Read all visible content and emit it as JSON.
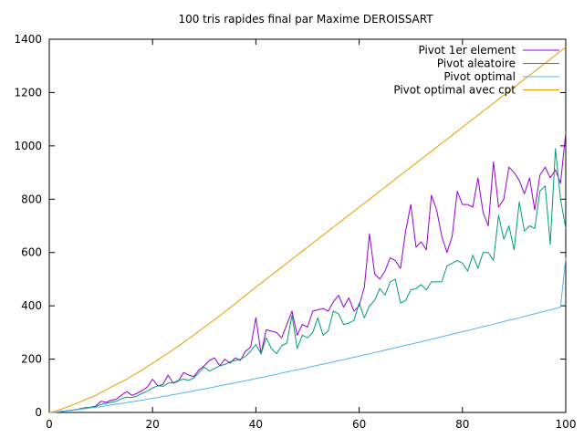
{
  "chart_data": {
    "type": "line",
    "title": "100 tris rapides final par Maxime DEROISSART",
    "xlabel": "",
    "ylabel": "",
    "xlim": [
      0,
      100
    ],
    "ylim": [
      0,
      1400
    ],
    "xticks": [
      0,
      20,
      40,
      60,
      80,
      100
    ],
    "yticks": [
      0,
      200,
      400,
      600,
      800,
      1000,
      1200,
      1400
    ],
    "grid": false,
    "legend_position": "top-right",
    "x": [
      0,
      1,
      2,
      3,
      4,
      5,
      6,
      7,
      8,
      9,
      10,
      11,
      12,
      13,
      14,
      15,
      16,
      17,
      18,
      19,
      20,
      21,
      22,
      23,
      24,
      25,
      26,
      27,
      28,
      29,
      30,
      31,
      32,
      33,
      34,
      35,
      36,
      37,
      38,
      39,
      40,
      41,
      42,
      43,
      44,
      45,
      46,
      47,
      48,
      49,
      50,
      51,
      52,
      53,
      54,
      55,
      56,
      57,
      58,
      59,
      60,
      61,
      62,
      63,
      64,
      65,
      66,
      67,
      68,
      69,
      70,
      71,
      72,
      73,
      74,
      75,
      76,
      77,
      78,
      79,
      80,
      81,
      82,
      83,
      84,
      85,
      86,
      87,
      88,
      89,
      90,
      91,
      92,
      93,
      94,
      95,
      96,
      97,
      98,
      99,
      100
    ],
    "series": [
      {
        "name": "Pivot 1er element",
        "color": "#9400d3",
        "values": [
          0,
          1,
          3,
          5,
          8,
          10,
          14,
          18,
          20,
          24,
          42,
          38,
          46,
          50,
          65,
          78,
          64,
          72,
          82,
          95,
          125,
          100,
          105,
          140,
          110,
          118,
          150,
          140,
          135,
          160,
          175,
          195,
          205,
          175,
          200,
          185,
          205,
          195,
          230,
          245,
          355,
          220,
          310,
          305,
          300,
          280,
          330,
          380,
          290,
          330,
          320,
          380,
          385,
          390,
          380,
          415,
          440,
          395,
          430,
          380,
          400,
          470,
          670,
          520,
          500,
          530,
          580,
          570,
          540,
          680,
          780,
          620,
          640,
          610,
          815,
          760,
          660,
          600,
          660,
          830,
          780,
          780,
          770,
          880,
          750,
          700,
          940,
          770,
          800,
          920,
          900,
          870,
          820,
          880,
          760,
          890,
          920,
          880,
          910,
          860,
          1050
        ]
      },
      {
        "name": "Pivot aleatoire",
        "color": "#009e73",
        "values": [
          0,
          1,
          3,
          5,
          8,
          10,
          14,
          17,
          20,
          22,
          30,
          34,
          38,
          42,
          52,
          58,
          56,
          62,
          72,
          80,
          92,
          100,
          98,
          110,
          112,
          120,
          125,
          120,
          130,
          150,
          170,
          155,
          165,
          175,
          180,
          190,
          195,
          200,
          210,
          230,
          255,
          220,
          280,
          240,
          220,
          250,
          260,
          365,
          240,
          290,
          280,
          300,
          355,
          290,
          305,
          380,
          370,
          330,
          335,
          345,
          410,
          355,
          400,
          420,
          465,
          440,
          490,
          500,
          410,
          420,
          460,
          465,
          480,
          460,
          490,
          490,
          490,
          550,
          560,
          570,
          560,
          530,
          590,
          540,
          600,
          600,
          570,
          740,
          650,
          700,
          610,
          790,
          680,
          700,
          690,
          830,
          850,
          630,
          990,
          800,
          690
        ]
      },
      {
        "name": "Pivot optimal",
        "color": "#56b4e9",
        "values": [
          0,
          1,
          3,
          5,
          7,
          9,
          12,
          14,
          17,
          19,
          22,
          25,
          28,
          31,
          34,
          37,
          40,
          43,
          46,
          50,
          53,
          56,
          60,
          63,
          67,
          70,
          74,
          77,
          81,
          85,
          88,
          92,
          96,
          100,
          104,
          107,
          111,
          115,
          119,
          123,
          127,
          131,
          135,
          139,
          143,
          148,
          152,
          156,
          160,
          164,
          168,
          173,
          177,
          181,
          185,
          190,
          194,
          198,
          203,
          207,
          211,
          216,
          220,
          225,
          229,
          234,
          238,
          243,
          247,
          252,
          256,
          261,
          265,
          270,
          275,
          279,
          284,
          289,
          293,
          298,
          303,
          307,
          312,
          317,
          322,
          326,
          331,
          336,
          341,
          346,
          350,
          355,
          360,
          365,
          370,
          375,
          380,
          385,
          390,
          395,
          580
        ]
      },
      {
        "name": "Pivot optimal avec cpt",
        "color": "#e69f00",
        "values": [
          0,
          4,
          10,
          17,
          24,
          32,
          40,
          48,
          56,
          64,
          75,
          85,
          95,
          105,
          115,
          125,
          137,
          148,
          160,
          172,
          185,
          197,
          210,
          222,
          236,
          249,
          263,
          277,
          291,
          305,
          320,
          334,
          348,
          363,
          378,
          393,
          408,
          424,
          439,
          455,
          470,
          485,
          500,
          515,
          530,
          545,
          560,
          575,
          590,
          605,
          620,
          635,
          650,
          665,
          680,
          695,
          710,
          725,
          740,
          755,
          770,
          785,
          800,
          815,
          830,
          845,
          860,
          875,
          890,
          905,
          920,
          935,
          950,
          965,
          980,
          995,
          1010,
          1025,
          1040,
          1055,
          1070,
          1085,
          1100,
          1115,
          1130,
          1145,
          1160,
          1175,
          1190,
          1205,
          1220,
          1235,
          1250,
          1265,
          1280,
          1295,
          1310,
          1325,
          1340,
          1355,
          1370
        ]
      }
    ]
  }
}
